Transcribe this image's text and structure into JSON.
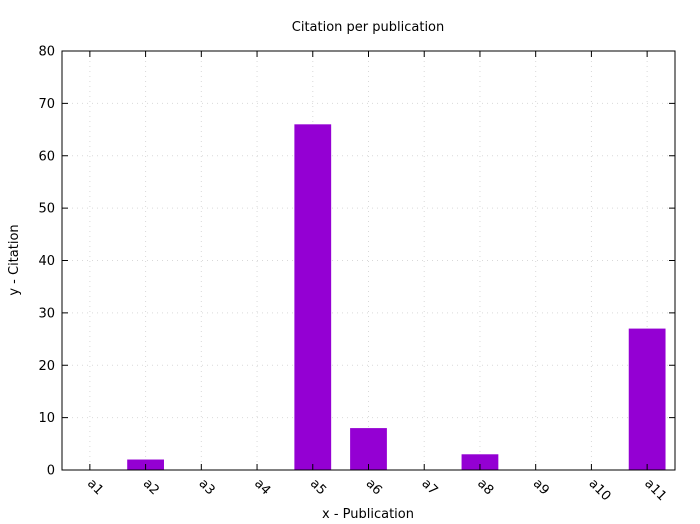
{
  "chart_data": {
    "type": "bar",
    "title": "Citation per publication",
    "xlabel": "x - Publication",
    "ylabel": "y - Citation",
    "categories": [
      "a1",
      "a2",
      "a3",
      "a4",
      "a5",
      "a6",
      "a7",
      "a8",
      "a9",
      "a10",
      "a11"
    ],
    "values": [
      0,
      2,
      0,
      0,
      66,
      8,
      0,
      3,
      0,
      0,
      27
    ],
    "ylim": [
      0,
      80
    ],
    "yticks": [
      0,
      10,
      20,
      30,
      40,
      50,
      60,
      70,
      80
    ],
    "grid": true,
    "colors": {
      "bar": "#9400d3",
      "grid": "#d9d9d9",
      "axis": "#000000"
    }
  }
}
